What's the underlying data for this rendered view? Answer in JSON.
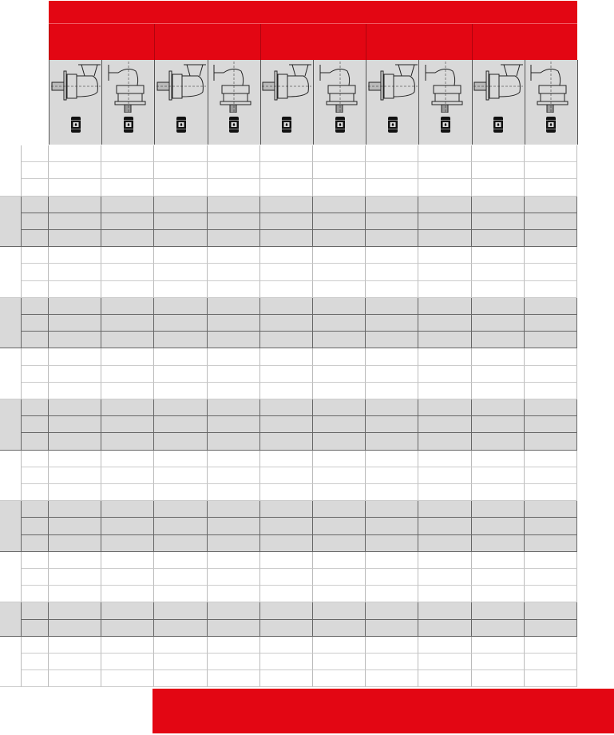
{
  "colors": {
    "accent": "#e30613",
    "band": "#d9d9d9",
    "white": "#ffffff"
  },
  "header": {
    "title": "",
    "groups": [
      "",
      "",
      "",
      "",
      ""
    ]
  },
  "columns": [
    {
      "product_icon": "inline-gearbox-icon",
      "lubricant_icon": "oil-barrel-icon"
    },
    {
      "product_icon": "right-angle-gearbox-icon",
      "lubricant_icon": "oil-barrel-icon"
    },
    {
      "product_icon": "inline-gearbox-icon",
      "lubricant_icon": "oil-barrel-icon"
    },
    {
      "product_icon": "right-angle-gearbox-icon",
      "lubricant_icon": "oil-barrel-icon"
    },
    {
      "product_icon": "inline-gearbox-icon",
      "lubricant_icon": "oil-barrel-icon"
    },
    {
      "product_icon": "right-angle-gearbox-icon",
      "lubricant_icon": "oil-barrel-icon"
    },
    {
      "product_icon": "inline-gearbox-icon",
      "lubricant_icon": "oil-barrel-icon"
    },
    {
      "product_icon": "right-angle-gearbox-icon",
      "lubricant_icon": "oil-barrel-icon"
    },
    {
      "product_icon": "inline-gearbox-icon",
      "lubricant_icon": "oil-barrel-icon"
    },
    {
      "product_icon": "right-angle-gearbox-icon",
      "lubricant_icon": "oil-barrel-icon"
    }
  ],
  "row_groups": [
    {
      "rows": 3,
      "shaded": false
    },
    {
      "rows": 3,
      "shaded": true
    },
    {
      "rows": 3,
      "shaded": false
    },
    {
      "rows": 3,
      "shaded": true
    },
    {
      "rows": 3,
      "shaded": false
    },
    {
      "rows": 3,
      "shaded": true
    },
    {
      "rows": 3,
      "shaded": false
    },
    {
      "rows": 3,
      "shaded": true
    },
    {
      "rows": 3,
      "shaded": false
    },
    {
      "rows": 2,
      "shaded": true
    },
    {
      "rows": 3,
      "shaded": false
    }
  ],
  "footer": {
    "text": ""
  }
}
